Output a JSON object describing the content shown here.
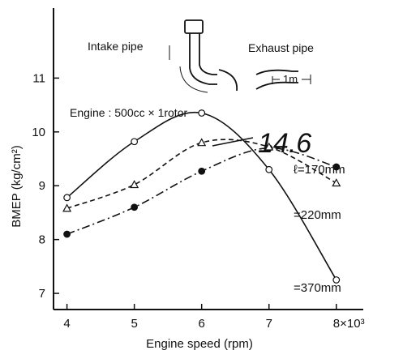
{
  "chart_data": {
    "type": "line",
    "title": "",
    "xlabel": "Engine speed (rpm)",
    "ylabel": "BMEP (kg/cm²)",
    "x_tick_labels": [
      "4",
      "5",
      "6",
      "7",
      "8×10³"
    ],
    "y_tick_labels": [
      "7",
      "8",
      "9",
      "10",
      "11"
    ],
    "x_ticks": [
      4,
      5,
      6,
      7,
      8
    ],
    "y_ticks": [
      7,
      8,
      9,
      10,
      11
    ],
    "xlim": [
      3.8,
      8.4
    ],
    "ylim": [
      6.7,
      12.3
    ],
    "grid": false,
    "series": [
      {
        "name": "ℓ=170mm",
        "line_style": "dash-dot",
        "marker": "filled-circle",
        "x": [
          4,
          5,
          6,
          7,
          8
        ],
        "y": [
          8.1,
          8.6,
          9.27,
          9.7,
          9.35
        ]
      },
      {
        "name": "=220mm",
        "line_style": "dashed",
        "marker": "open-triangle",
        "x": [
          4,
          5,
          6,
          7,
          8
        ],
        "y": [
          8.58,
          9.02,
          9.8,
          9.72,
          9.05
        ]
      },
      {
        "name": "=370mm",
        "line_style": "solid",
        "marker": "open-circle",
        "x": [
          4,
          5,
          6,
          7,
          8
        ],
        "y": [
          8.78,
          9.82,
          10.35,
          9.3,
          7.25
        ]
      }
    ],
    "annotations": {
      "engine": "Engine : 500cc × 1rotor",
      "intake": "Intake pipe",
      "exhaust": "Exhaust pipe",
      "scale": "1m",
      "handwritten": "14.6"
    }
  }
}
